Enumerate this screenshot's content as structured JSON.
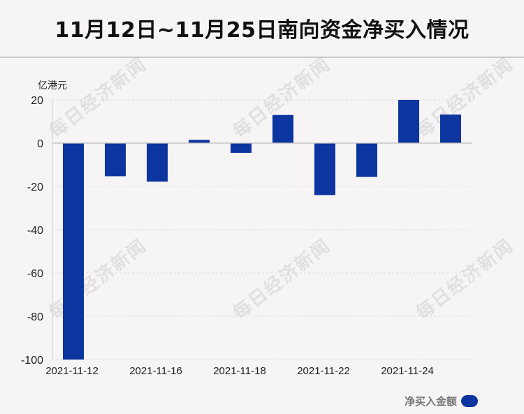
{
  "title": "11月12日~11月25日南向资金净买入情况",
  "watermark": "每日经济新闻",
  "colors": {
    "bar": "#0c35a0",
    "background": "#f7f4f6"
  },
  "chart_data": {
    "type": "bar",
    "unit_label": "亿港元",
    "legend_label": "净买入金额",
    "legend_position": "bottom-right",
    "ylim": [
      -100,
      20
    ],
    "y_ticks": [
      "20",
      "0",
      "-20",
      "-40",
      "-60",
      "-80",
      "-100"
    ],
    "x_tick_labels": [
      "2021-11-12",
      "2021-11-16",
      "2021-11-18",
      "2021-11-22",
      "2021-11-24"
    ],
    "grid": true,
    "series": [
      {
        "name": "净买入金额",
        "values": [
          -100,
          -15.3,
          -17.8,
          1.5,
          -4.5,
          13.0,
          -24.0,
          -15.6,
          20.0,
          13.2
        ]
      }
    ]
  }
}
